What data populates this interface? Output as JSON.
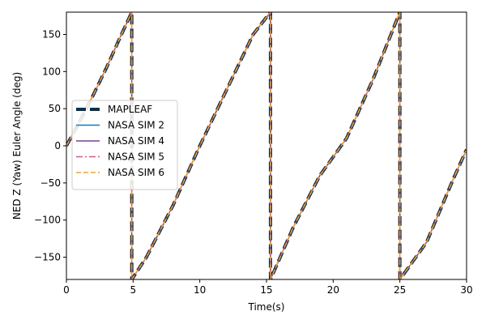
{
  "chart_data": {
    "type": "line",
    "title": "",
    "xlabel": "Time(s)",
    "ylabel": "NED Z (Yaw) Euler Angle (deg)",
    "xlim": [
      0,
      30
    ],
    "ylim": [
      -180,
      180
    ],
    "xticks": [
      0,
      5,
      10,
      15,
      20,
      25,
      30
    ],
    "yticks": [
      -150,
      -100,
      -50,
      0,
      50,
      100,
      150
    ],
    "grid": false,
    "legend_position": "center-left",
    "series": [
      {
        "name": "MAPLEAF",
        "color": "#003153",
        "style": "dashed-thick",
        "x": [
          0,
          1,
          2,
          3,
          4,
          4.9,
          4.9,
          6,
          8,
          10,
          12,
          14,
          15.3,
          15.3,
          17,
          19,
          21,
          23,
          25,
          25,
          27,
          29,
          30
        ],
        "y": [
          0,
          33,
          68,
          105,
          145,
          180,
          -180,
          -150,
          -80,
          0,
          75,
          150,
          180,
          -180,
          -110,
          -40,
          10,
          90,
          180,
          -180,
          -130,
          -45,
          -5
        ]
      },
      {
        "name": "NASA SIM 2",
        "color": "#1f77b4",
        "style": "solid",
        "x": [
          0,
          1,
          2,
          3,
          4,
          4.9,
          4.9,
          6,
          8,
          10,
          12,
          14,
          15.3,
          15.3,
          17,
          19,
          21,
          23,
          25,
          25,
          27,
          29,
          30
        ],
        "y": [
          0,
          33,
          68,
          105,
          145,
          180,
          -180,
          -150,
          -80,
          0,
          75,
          150,
          180,
          -180,
          -110,
          -40,
          10,
          90,
          180,
          -180,
          -130,
          -45,
          -5
        ]
      },
      {
        "name": "NASA SIM 4",
        "color": "#7b3f8e",
        "style": "solid",
        "x": [
          0,
          1,
          2,
          3,
          4,
          4.9,
          4.9,
          6,
          8,
          10,
          12,
          14,
          15.3,
          15.3,
          17,
          19,
          21,
          23,
          25,
          25,
          27,
          29,
          30
        ],
        "y": [
          0,
          33,
          68,
          105,
          145,
          180,
          -180,
          -150,
          -80,
          0,
          75,
          150,
          180,
          -180,
          -110,
          -40,
          10,
          90,
          180,
          -180,
          -130,
          -45,
          -5
        ]
      },
      {
        "name": "NASA SIM 5",
        "color": "#e0508a",
        "style": "dashdot",
        "x": [
          0,
          1,
          2,
          3,
          4,
          4.9,
          4.9,
          6,
          8,
          10,
          12,
          14,
          15.3,
          15.3,
          17,
          19,
          21,
          23,
          25,
          25,
          27,
          29,
          30
        ],
        "y": [
          0,
          33,
          68,
          105,
          145,
          180,
          -180,
          -150,
          -80,
          0,
          75,
          150,
          180,
          -180,
          -110,
          -40,
          10,
          90,
          180,
          -180,
          -130,
          -45,
          -5
        ]
      },
      {
        "name": "NASA SIM 6",
        "color": "#ffa500",
        "style": "dashed",
        "x": [
          0,
          1,
          2,
          3,
          4,
          4.9,
          4.9,
          6,
          8,
          10,
          12,
          14,
          15.3,
          15.3,
          17,
          19,
          21,
          23,
          25,
          25,
          27,
          29,
          30
        ],
        "y": [
          0,
          33,
          68,
          105,
          145,
          180,
          -180,
          -150,
          -80,
          0,
          75,
          150,
          180,
          -180,
          -110,
          -40,
          10,
          90,
          180,
          -180,
          -130,
          -45,
          -5
        ]
      }
    ]
  }
}
